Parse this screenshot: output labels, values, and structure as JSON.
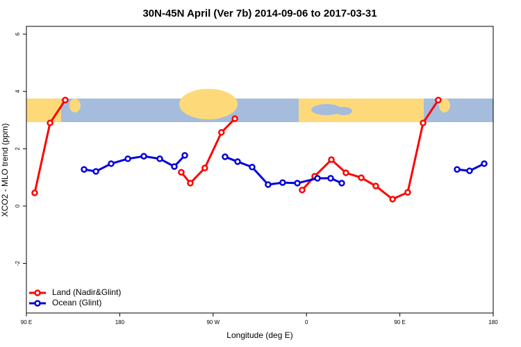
{
  "chart_data": {
    "type": "line",
    "title": "30N-45N April (Ver 7b)   2014-09-06 to 2017-03-31",
    "x_label": "Longitude (deg E)",
    "y_label": "XCO2 - MLO trend (ppm)",
    "xlim": [
      90,
      540
    ],
    "ylim": [
      -3.73,
      6.27
    ],
    "xticks": [
      {
        "value": 90,
        "label": "90 E"
      },
      180,
      {
        "value": 270,
        "label": "90 W"
      },
      {
        "value": 360,
        "label": "0"
      },
      {
        "value": 450,
        "label": "90 E"
      },
      {
        "value": 540,
        "label": "180"
      }
    ],
    "yticks": [
      -2,
      0,
      2,
      4,
      6
    ],
    "legend": "bottom-left",
    "series": [
      {
        "name": "Land (Nadir&Glint)",
        "color": "#ff0000",
        "x": [
          98,
          112.8,
          127.5,
          null,
          239.3,
          248,
          262,
          278,
          291,
          null,
          355.8,
          367.9,
          384,
          398,
          412.8,
          426.8,
          443,
          457.6,
          472.4,
          487
        ],
        "values": [
          0.46,
          2.9,
          3.7,
          null,
          1.18,
          0.8,
          1.33,
          2.57,
          3.05,
          null,
          0.56,
          1.04,
          1.62,
          1.16,
          0.99,
          0.7,
          0.24,
          0.48,
          2.9,
          3.7
        ]
      },
      {
        "name": "Ocean (Glint)",
        "color": "#0000dd",
        "x": [
          145.6,
          157,
          171.7,
          187.8,
          203.2,
          218.6,
          232.6,
          242.7,
          null,
          281.5,
          293.6,
          307.6,
          323,
          337,
          351.2,
          370.6,
          383.3,
          394,
          null,
          505.2,
          517.2,
          531.3
        ],
        "values": [
          1.28,
          1.21,
          1.48,
          1.65,
          1.74,
          1.65,
          1.38,
          1.77,
          null,
          1.72,
          1.55,
          1.36,
          0.75,
          0.82,
          0.8,
          0.97,
          0.97,
          0.8,
          null,
          1.28,
          1.23,
          1.48
        ]
      }
    ]
  }
}
